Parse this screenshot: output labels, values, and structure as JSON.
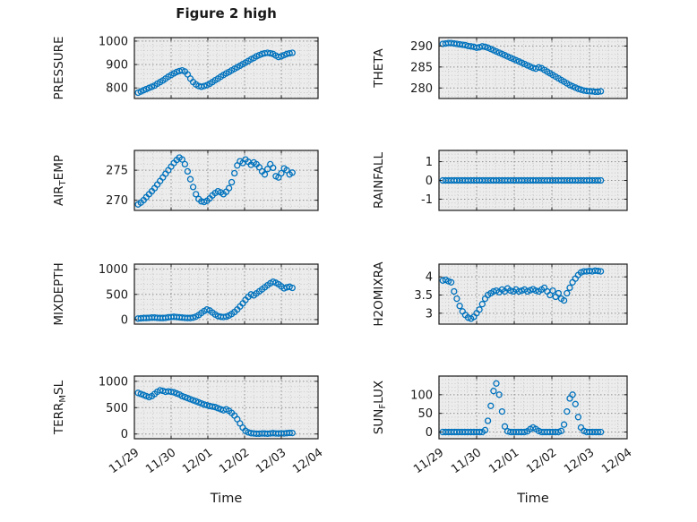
{
  "figure": {
    "title": "Figure 2 high"
  },
  "colors": {
    "marker": "#0072BD",
    "plot_bg": "#ececec",
    "grid_major": "#8f8f8f",
    "grid_minor": "#c9c9c9",
    "axis": "#1a1a1a"
  },
  "x_axis": {
    "label": "Time",
    "tick_labels": [
      "11/29",
      "11/30",
      "12/01",
      "12/02",
      "12/03",
      "12/04"
    ],
    "tick_values": [
      0,
      1,
      2,
      3,
      4,
      5
    ],
    "xlim": [
      0,
      5
    ],
    "minor_step": 0.25
  },
  "chart_data": [
    {
      "type": "scatter",
      "name": "pressure",
      "ylabel": [
        {
          "t": "PRESSURE"
        }
      ],
      "yticks": [
        800,
        900,
        1000
      ],
      "ylim": [
        755,
        1015
      ],
      "x_start": 0.1,
      "x_step": 0.075,
      "values": [
        780,
        785,
        790,
        795,
        800,
        805,
        810,
        818,
        825,
        832,
        840,
        848,
        855,
        862,
        868,
        872,
        875,
        870,
        858,
        840,
        825,
        815,
        808,
        805,
        808,
        812,
        818,
        825,
        833,
        840,
        848,
        855,
        862,
        868,
        875,
        882,
        888,
        895,
        902,
        908,
        915,
        922,
        928,
        935,
        940,
        945,
        948,
        950,
        948,
        945,
        938,
        932,
        935,
        940,
        945,
        948,
        950
      ]
    },
    {
      "type": "scatter",
      "name": "theta",
      "ylabel": [
        {
          "t": "THETA"
        }
      ],
      "yticks": [
        280,
        285,
        290
      ],
      "ylim": [
        277.5,
        292
      ],
      "x_start": 0.1,
      "x_step": 0.075,
      "values": [
        290.5,
        290.6,
        290.7,
        290.7,
        290.6,
        290.5,
        290.4,
        290.3,
        290.2,
        290.0,
        289.9,
        289.8,
        289.6,
        289.7,
        289.9,
        289.8,
        289.6,
        289.3,
        289.0,
        288.7,
        288.4,
        288.1,
        287.8,
        287.5,
        287.2,
        286.9,
        286.6,
        286.3,
        286.0,
        285.7,
        285.4,
        285.1,
        284.8,
        284.6,
        284.9,
        284.7,
        284.3,
        283.9,
        283.5,
        283.1,
        282.7,
        282.3,
        281.9,
        281.5,
        281.1,
        280.7,
        280.4,
        280.1,
        279.8,
        279.6,
        279.4,
        279.3,
        279.2,
        279.2,
        279.1,
        279.1,
        279.2
      ]
    },
    {
      "type": "scatter",
      "name": "air-temp",
      "ylabel": [
        {
          "t": "AIR"
        },
        {
          "t": "T",
          "sub": true
        },
        {
          "t": "EMP"
        }
      ],
      "yticks": [
        270,
        275
      ],
      "ylim": [
        268.3,
        278.3
      ],
      "x_start": 0.1,
      "x_step": 0.075,
      "values": [
        269.3,
        269.6,
        270.0,
        270.5,
        271.0,
        271.5,
        272.0,
        272.6,
        273.2,
        273.8,
        274.4,
        275.0,
        275.6,
        276.2,
        276.7,
        277.1,
        276.8,
        276.0,
        274.8,
        273.5,
        272.2,
        271.0,
        270.2,
        269.8,
        269.7,
        269.9,
        270.3,
        270.8,
        271.2,
        271.5,
        271.3,
        271.0,
        271.4,
        272.0,
        273.0,
        274.5,
        275.8,
        276.5,
        276.2,
        276.8,
        276.4,
        275.9,
        276.3,
        276.0,
        275.5,
        274.8,
        274.3,
        275.2,
        276.0,
        275.4,
        274.0,
        273.8,
        274.5,
        275.3,
        275.0,
        274.3,
        274.6
      ]
    },
    {
      "type": "scatter",
      "name": "rainfall",
      "ylabel": [
        {
          "t": "RAINFALL"
        }
      ],
      "yticks": [
        -1,
        0,
        1
      ],
      "ylim": [
        -1.6,
        1.6
      ],
      "x_start": 0.1,
      "x_step": 0.075,
      "values": [
        0,
        0,
        0,
        0,
        0,
        0,
        0,
        0,
        0,
        0,
        0,
        0,
        0,
        0,
        0,
        0,
        0,
        0,
        0,
        0,
        0,
        0,
        0,
        0,
        0,
        0,
        0,
        0,
        0,
        0,
        0,
        0,
        0,
        0,
        0,
        0,
        0,
        0,
        0,
        0,
        0,
        0,
        0,
        0,
        0,
        0,
        0,
        0,
        0,
        0,
        0,
        0,
        0,
        0,
        0,
        0,
        0
      ]
    },
    {
      "type": "scatter",
      "name": "mixdepth",
      "ylabel": [
        {
          "t": "MIXDEPTH"
        }
      ],
      "yticks": [
        0,
        500,
        1000
      ],
      "ylim": [
        -90,
        1100
      ],
      "x_start": 0.1,
      "x_step": 0.075,
      "values": [
        20,
        25,
        30,
        30,
        35,
        40,
        40,
        35,
        30,
        30,
        35,
        45,
        50,
        55,
        50,
        45,
        40,
        35,
        30,
        30,
        40,
        60,
        90,
        130,
        170,
        200,
        180,
        140,
        100,
        70,
        55,
        50,
        60,
        80,
        110,
        150,
        200,
        260,
        320,
        390,
        450,
        500,
        480,
        520,
        560,
        600,
        640,
        680,
        720,
        750,
        730,
        700,
        660,
        620,
        640,
        650,
        630
      ]
    },
    {
      "type": "scatter",
      "name": "h2omixra",
      "ylabel": [
        {
          "t": "H2OMIXRA"
        }
      ],
      "yticks": [
        3,
        3.5,
        4
      ],
      "ylim": [
        2.7,
        4.35
      ],
      "x_start": 0.1,
      "x_step": 0.075,
      "values": [
        3.9,
        3.92,
        3.88,
        3.85,
        3.6,
        3.4,
        3.2,
        3.05,
        2.95,
        2.88,
        2.85,
        2.9,
        3.0,
        3.1,
        3.25,
        3.4,
        3.5,
        3.55,
        3.6,
        3.62,
        3.58,
        3.65,
        3.6,
        3.68,
        3.62,
        3.6,
        3.65,
        3.6,
        3.62,
        3.65,
        3.6,
        3.63,
        3.66,
        3.62,
        3.6,
        3.65,
        3.7,
        3.6,
        3.5,
        3.62,
        3.45,
        3.55,
        3.4,
        3.35,
        3.55,
        3.7,
        3.85,
        3.95,
        4.05,
        4.12,
        4.15,
        4.15,
        4.16,
        4.15,
        4.17,
        4.16,
        4.15
      ]
    },
    {
      "type": "scatter",
      "name": "terr-msl",
      "ylabel": [
        {
          "t": "TERR"
        },
        {
          "t": "M",
          "sub": true
        },
        {
          "t": "SL"
        }
      ],
      "yticks": [
        0,
        500,
        1000
      ],
      "ylim": [
        -90,
        1100
      ],
      "x_start": 0.1,
      "x_step": 0.075,
      "values": [
        780,
        760,
        740,
        720,
        700,
        720,
        760,
        800,
        830,
        820,
        800,
        810,
        800,
        790,
        770,
        750,
        720,
        700,
        680,
        660,
        640,
        620,
        600,
        580,
        560,
        545,
        530,
        520,
        510,
        490,
        470,
        450,
        470,
        440,
        400,
        350,
        280,
        200,
        120,
        60,
        30,
        15,
        10,
        5,
        5,
        10,
        8,
        5,
        10,
        15,
        10,
        8,
        12,
        10,
        15,
        20,
        18
      ]
    },
    {
      "type": "scatter",
      "name": "sun-flux",
      "ylabel": [
        {
          "t": "SUN"
        },
        {
          "t": "F",
          "sub": true
        },
        {
          "t": "LUX"
        }
      ],
      "yticks": [
        0,
        50,
        100
      ],
      "ylim": [
        -18,
        150
      ],
      "x_start": 0.1,
      "x_step": 0.075,
      "values": [
        0,
        0,
        0,
        0,
        0,
        0,
        0,
        0,
        0,
        0,
        0,
        0,
        0,
        0,
        0,
        5,
        30,
        70,
        110,
        130,
        100,
        55,
        15,
        2,
        0,
        0,
        0,
        0,
        0,
        0,
        2,
        8,
        12,
        8,
        3,
        0,
        0,
        0,
        0,
        0,
        0,
        0,
        3,
        20,
        55,
        90,
        100,
        75,
        40,
        12,
        3,
        0,
        0,
        0,
        0,
        0,
        0
      ]
    }
  ]
}
